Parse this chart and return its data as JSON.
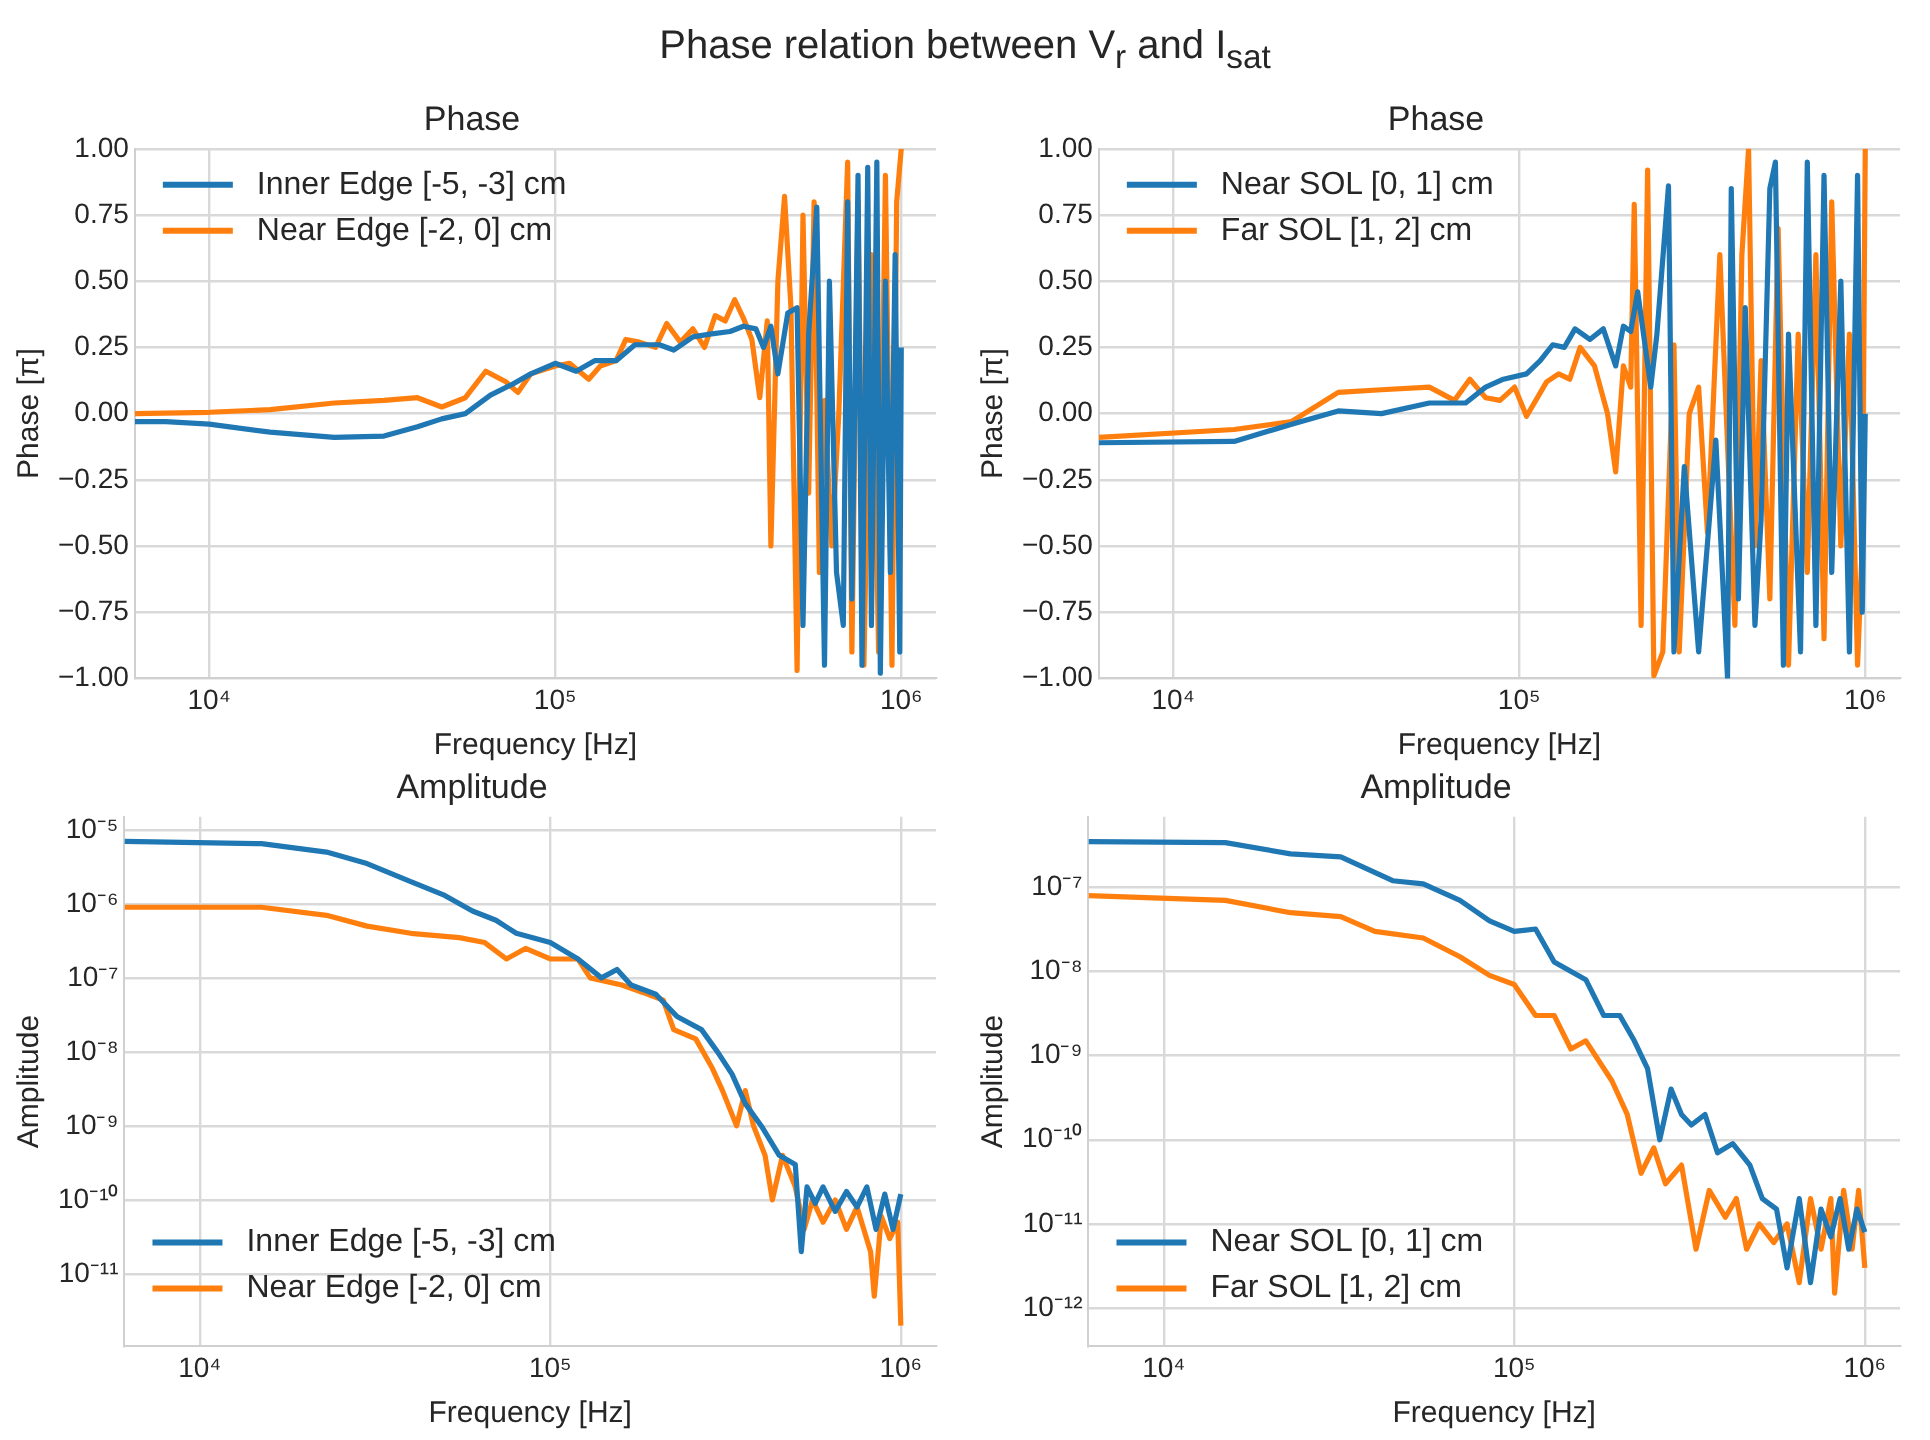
{
  "chart_data": [
    {
      "type": "line",
      "title": "Phase relation between V$_{r}$ and I$_{sat}$",
      "subtitle": "Phase",
      "xlabel": "Frequency [Hz]",
      "ylabel": "Phase [π]",
      "log": "x",
      "grid": true,
      "legend": "top left",
      "xlim": [
        6100,
        1260000
      ],
      "xticks": [
        {
          "value": 10000,
          "label": "10⁴"
        },
        {
          "value": 100000,
          "label": "10⁵"
        },
        {
          "value": 1000000,
          "label": "10⁶"
        }
      ],
      "ylim": [
        -1,
        1
      ],
      "yticks": [
        {
          "value": -1,
          "label": "−1.00"
        },
        {
          "value": -0.75,
          "label": "−0.75"
        },
        {
          "value": -0.5,
          "label": "−0.50"
        },
        {
          "value": -0.25,
          "label": "−0.25"
        },
        {
          "value": 0,
          "label": "0.00"
        },
        {
          "value": 0.25,
          "label": "0.25"
        },
        {
          "value": 0.5,
          "label": "0.50"
        },
        {
          "value": 0.75,
          "label": "0.75"
        },
        {
          "value": 1,
          "label": "1.00"
        }
      ],
      "series": [
        {
          "name": "Inner Edge [-5, -3] cm",
          "color": "#1f77b4",
          "x": [
            6100,
            7500,
            10000,
            15000,
            23000,
            32000,
            40000,
            47000,
            55000,
            65000,
            75000,
            85000,
            100000,
            115000,
            130000,
            150000,
            170000,
            200000,
            220000,
            250000,
            280000,
            320000,
            350000,
            380000,
            400000,
            420000,
            440000,
            470000,
            500000,
            520000,
            540000,
            570000,
            600000,
            620000,
            650000,
            680000,
            700000,
            720000,
            750000,
            770000,
            800000,
            820000,
            850000,
            870000,
            900000,
            930000,
            960000,
            990000,
            1000000
          ],
          "values": [
            -0.03,
            -0.03,
            -0.04,
            -0.07,
            -0.09,
            -0.085,
            -0.05,
            -0.02,
            0.0,
            0.07,
            0.11,
            0.15,
            0.19,
            0.16,
            0.2,
            0.2,
            0.26,
            0.26,
            0.24,
            0.29,
            0.3,
            0.31,
            0.33,
            0.32,
            0.25,
            0.33,
            0.15,
            0.38,
            0.4,
            -0.8,
            0.3,
            0.78,
            -0.95,
            0.5,
            -0.6,
            -0.8,
            0.8,
            -0.7,
            0.9,
            -0.95,
            0.93,
            -0.8,
            0.95,
            -0.98,
            0.5,
            -0.6,
            0.6,
            -0.9,
            0.25
          ]
        },
        {
          "name": "Near Edge [-2, 0] cm",
          "color": "#ff7f0e",
          "x": [
            6100,
            10000,
            15000,
            23000,
            32000,
            40000,
            47000,
            55000,
            63000,
            72000,
            78000,
            85000,
            100000,
            110000,
            125000,
            135000,
            150000,
            160000,
            175000,
            195000,
            210000,
            230000,
            250000,
            270000,
            290000,
            310000,
            330000,
            350000,
            370000,
            390000,
            410000,
            420000,
            440000,
            460000,
            480000,
            500000,
            520000,
            540000,
            560000,
            580000,
            600000,
            630000,
            660000,
            700000,
            720000,
            750000,
            780000,
            820000,
            860000,
            900000,
            940000,
            970000,
            1000000
          ],
          "values": [
            0.0,
            0.005,
            0.015,
            0.04,
            0.05,
            0.06,
            0.025,
            0.06,
            0.16,
            0.12,
            0.08,
            0.15,
            0.18,
            0.19,
            0.13,
            0.18,
            0.2,
            0.28,
            0.27,
            0.25,
            0.34,
            0.27,
            0.32,
            0.25,
            0.37,
            0.35,
            0.43,
            0.36,
            0.28,
            0.06,
            0.35,
            -0.5,
            0.5,
            0.82,
            0.4,
            -0.97,
            0.75,
            -0.3,
            0.8,
            -0.6,
            0.05,
            -0.5,
            0.0,
            0.95,
            -0.9,
            0.8,
            -0.95,
            0.6,
            -0.9,
            0.9,
            -0.95,
            0.8,
            1.0
          ]
        }
      ]
    },
    {
      "type": "line",
      "subtitle": "Phase",
      "xlabel": "Frequency [Hz]",
      "ylabel": "Phase [π]",
      "log": "x",
      "grid": true,
      "legend": "top left",
      "xlim": [
        6100,
        1260000
      ],
      "xticks": [
        {
          "value": 10000,
          "label": "10⁴"
        },
        {
          "value": 100000,
          "label": "10⁵"
        },
        {
          "value": 1000000,
          "label": "10⁶"
        }
      ],
      "ylim": [
        -1,
        1
      ],
      "yticks": [
        {
          "value": -1,
          "label": "−1.00"
        },
        {
          "value": -0.75,
          "label": "−0.75"
        },
        {
          "value": -0.5,
          "label": "−0.50"
        },
        {
          "value": -0.25,
          "label": "−0.25"
        },
        {
          "value": 0,
          "label": "0.00"
        },
        {
          "value": 0.25,
          "label": "0.25"
        },
        {
          "value": 0.5,
          "label": "0.50"
        },
        {
          "value": 0.75,
          "label": "0.75"
        },
        {
          "value": 1,
          "label": "1.00"
        }
      ],
      "series": [
        {
          "name": "Near SOL [0, 1] cm",
          "color": "#1f77b4",
          "x": [
            6100,
            15000,
            22000,
            30000,
            40000,
            55000,
            70000,
            80000,
            90000,
            105000,
            115000,
            125000,
            135000,
            145000,
            160000,
            175000,
            190000,
            200000,
            210000,
            220000,
            240000,
            250000,
            270000,
            280000,
            300000,
            330000,
            370000,
            400000,
            410000,
            430000,
            450000,
            480000,
            500000,
            530000,
            550000,
            580000,
            600000,
            650000,
            680000,
            720000,
            760000,
            800000,
            850000,
            900000,
            950000,
            980000,
            1000000
          ],
          "values": [
            -0.11,
            -0.105,
            -0.04,
            0.01,
            0.0,
            0.04,
            0.04,
            0.1,
            0.13,
            0.15,
            0.2,
            0.26,
            0.25,
            0.32,
            0.28,
            0.32,
            0.18,
            0.33,
            0.31,
            0.46,
            0.1,
            0.3,
            0.86,
            -0.9,
            -0.2,
            -0.9,
            -0.1,
            -1.0,
            0.85,
            -0.7,
            0.4,
            -0.8,
            -0.4,
            0.85,
            0.95,
            -0.95,
            0.3,
            -0.9,
            0.95,
            -0.8,
            0.9,
            -0.6,
            0.5,
            -0.9,
            0.9,
            -0.75,
            0.0
          ]
        },
        {
          "name": "Far SOL [1, 2] cm",
          "color": "#ff7f0e",
          "x": [
            6100,
            15000,
            22000,
            30000,
            40000,
            55000,
            65000,
            72000,
            80000,
            88000,
            97000,
            105000,
            120000,
            130000,
            140000,
            150000,
            165000,
            180000,
            190000,
            200000,
            210000,
            215000,
            225000,
            235000,
            245000,
            260000,
            280000,
            290000,
            310000,
            330000,
            350000,
            380000,
            420000,
            440000,
            460000,
            480000,
            500000,
            530000,
            560000,
            600000,
            640000,
            680000,
            720000,
            760000,
            800000,
            850000,
            900000,
            950000,
            980000,
            1000000
          ],
          "values": [
            -0.09,
            -0.06,
            -0.03,
            0.08,
            0.09,
            0.1,
            0.05,
            0.13,
            0.06,
            0.05,
            0.1,
            -0.01,
            0.12,
            0.15,
            0.13,
            0.25,
            0.18,
            0.0,
            -0.22,
            0.18,
            0.1,
            0.79,
            -0.8,
            0.92,
            -0.99,
            -0.9,
            0.26,
            -0.9,
            0.0,
            0.1,
            -0.45,
            0.6,
            -0.8,
            0.6,
            1.0,
            -0.5,
            0.2,
            -0.7,
            0.7,
            -0.95,
            0.3,
            -0.6,
            0.6,
            -0.85,
            0.8,
            -0.5,
            0.3,
            -0.95,
            -0.5,
            1.0
          ]
        }
      ]
    },
    {
      "type": "line",
      "subtitle": "Amplitude",
      "xlabel": "Frequency [Hz]",
      "ylabel": "Amplitude",
      "log": "xy",
      "grid": true,
      "legend": "bottom left",
      "xlim": [
        6100,
        1260000
      ],
      "xticks": [
        {
          "value": 10000,
          "label": "10⁴"
        },
        {
          "value": 100000,
          "label": "10⁵"
        },
        {
          "value": 1000000,
          "label": "10⁶"
        }
      ],
      "ylim": [
        1.05e-12,
        1.5e-05
      ],
      "yticks": [
        {
          "value": 1e-11,
          "label": "10⁻¹¹"
        },
        {
          "value": 1e-10,
          "label": "10⁻¹⁰"
        },
        {
          "value": 1e-09,
          "label": "10⁻⁹"
        },
        {
          "value": 1e-08,
          "label": "10⁻⁸"
        },
        {
          "value": 1e-07,
          "label": "10⁻⁷"
        },
        {
          "value": 1e-06,
          "label": "10⁻⁶"
        },
        {
          "value": 1e-05,
          "label": "10⁻⁵"
        }
      ],
      "series": [
        {
          "name": "Inner Edge [-5, -3] cm",
          "color": "#1f77b4",
          "x": [
            6100,
            15000,
            23000,
            30000,
            40000,
            50000,
            60000,
            70000,
            80000,
            100000,
            120000,
            140000,
            155000,
            170000,
            200000,
            230000,
            270000,
            300000,
            330000,
            360000,
            400000,
            450000,
            500000,
            520000,
            540000,
            570000,
            600000,
            650000,
            700000,
            750000,
            800000,
            850000,
            900000,
            950000,
            1000000
          ],
          "values": [
            7e-06,
            6.5e-06,
            5e-06,
            3.5e-06,
            2e-06,
            1.3e-06,
            8e-07,
            6e-07,
            4e-07,
            3e-07,
            1.8e-07,
            1e-07,
            1.3e-07,
            8e-08,
            6e-08,
            3e-08,
            2e-08,
            1e-08,
            5e-09,
            2e-09,
            1e-09,
            4e-10,
            3e-10,
            2e-11,
            1.5e-10,
            9e-11,
            1.5e-10,
            7e-11,
            1.3e-10,
            8e-11,
            1.5e-10,
            4e-11,
            1.2e-10,
            4e-11,
            1.2e-10
          ]
        },
        {
          "name": "Near Edge [-2, 0] cm",
          "color": "#ff7f0e",
          "x": [
            6100,
            15000,
            23000,
            30000,
            40000,
            55000,
            65000,
            75000,
            85000,
            100000,
            120000,
            130000,
            160000,
            190000,
            210000,
            225000,
            260000,
            290000,
            310000,
            340000,
            360000,
            380000,
            410000,
            430000,
            460000,
            500000,
            530000,
            560000,
            600000,
            650000,
            700000,
            750000,
            820000,
            840000,
            880000,
            930000,
            980000,
            1000000
          ],
          "values": [
            9e-07,
            9e-07,
            7e-07,
            5e-07,
            4e-07,
            3.5e-07,
            3e-07,
            1.8e-07,
            2.5e-07,
            1.8e-07,
            1.8e-07,
            1e-07,
            8e-08,
            6e-08,
            5e-08,
            2e-08,
            1.5e-08,
            6e-09,
            3e-09,
            1e-09,
            3e-09,
            1e-09,
            4e-10,
            1e-10,
            4e-10,
            1.5e-10,
            4e-11,
            1e-10,
            5e-11,
            1e-10,
            4e-11,
            8e-11,
            2e-11,
            5e-12,
            6e-11,
            3e-11,
            5e-11,
            2e-12
          ]
        }
      ]
    },
    {
      "type": "line",
      "subtitle": "Amplitude",
      "xlabel": "Frequency [Hz]",
      "ylabel": "Amplitude",
      "log": "xy",
      "grid": true,
      "legend": "bottom left",
      "xlim": [
        6100,
        1260000
      ],
      "xticks": [
        {
          "value": 10000,
          "label": "10⁴"
        },
        {
          "value": 100000,
          "label": "10⁵"
        },
        {
          "value": 1000000,
          "label": "10⁶"
        }
      ],
      "ylim": [
        3.5e-13,
        6.9e-07
      ],
      "yticks": [
        {
          "value": 1e-12,
          "label": "10⁻¹²"
        },
        {
          "value": 1e-11,
          "label": "10⁻¹¹"
        },
        {
          "value": 1e-10,
          "label": "10⁻¹⁰"
        },
        {
          "value": 1e-09,
          "label": "10⁻⁹"
        },
        {
          "value": 1e-08,
          "label": "10⁻⁸"
        },
        {
          "value": 1e-07,
          "label": "10⁻⁷"
        }
      ],
      "series": [
        {
          "name": "Near SOL [0, 1] cm",
          "color": "#1f77b4",
          "x": [
            6100,
            15000,
            23000,
            32000,
            45000,
            55000,
            70000,
            85000,
            100000,
            115000,
            130000,
            160000,
            180000,
            200000,
            220000,
            240000,
            260000,
            280000,
            300000,
            320000,
            350000,
            380000,
            420000,
            470000,
            510000,
            560000,
            600000,
            650000,
            700000,
            750000,
            800000,
            850000,
            900000,
            950000,
            1000000
          ],
          "values": [
            3.5e-07,
            3.4e-07,
            2.5e-07,
            2.3e-07,
            1.2e-07,
            1.1e-07,
            7e-08,
            4e-08,
            3e-08,
            3.2e-08,
            1.3e-08,
            8e-09,
            3e-09,
            3e-09,
            1.5e-09,
            7e-10,
            1e-10,
            4e-10,
            2e-10,
            1.5e-10,
            2e-10,
            7e-11,
            9e-11,
            5e-11,
            2e-11,
            1.5e-11,
            3e-12,
            2e-11,
            2e-12,
            1.5e-11,
            7e-12,
            2e-11,
            5e-12,
            1.5e-11,
            8e-12
          ]
        },
        {
          "name": "Far SOL [1, 2] cm",
          "color": "#ff7f0e",
          "x": [
            6100,
            15000,
            23000,
            32000,
            40000,
            55000,
            70000,
            85000,
            100000,
            115000,
            130000,
            145000,
            160000,
            190000,
            210000,
            230000,
            250000,
            270000,
            300000,
            330000,
            360000,
            400000,
            430000,
            460000,
            500000,
            550000,
            600000,
            650000,
            700000,
            750000,
            800000,
            820000,
            870000,
            920000,
            960000,
            1000000
          ],
          "values": [
            8e-08,
            7e-08,
            5e-08,
            4.5e-08,
            3e-08,
            2.5e-08,
            1.5e-08,
            9e-09,
            7e-09,
            3e-09,
            3e-09,
            1.2e-09,
            1.5e-09,
            5e-10,
            2e-10,
            4e-11,
            8e-11,
            3e-11,
            5e-11,
            5e-12,
            2.5e-11,
            1.2e-11,
            2e-11,
            5e-12,
            1e-11,
            6e-12,
            1e-11,
            2e-12,
            2e-11,
            5e-12,
            2e-11,
            1.5e-12,
            2.5e-11,
            5e-12,
            2.5e-11,
            3e-12
          ]
        }
      ]
    }
  ]
}
